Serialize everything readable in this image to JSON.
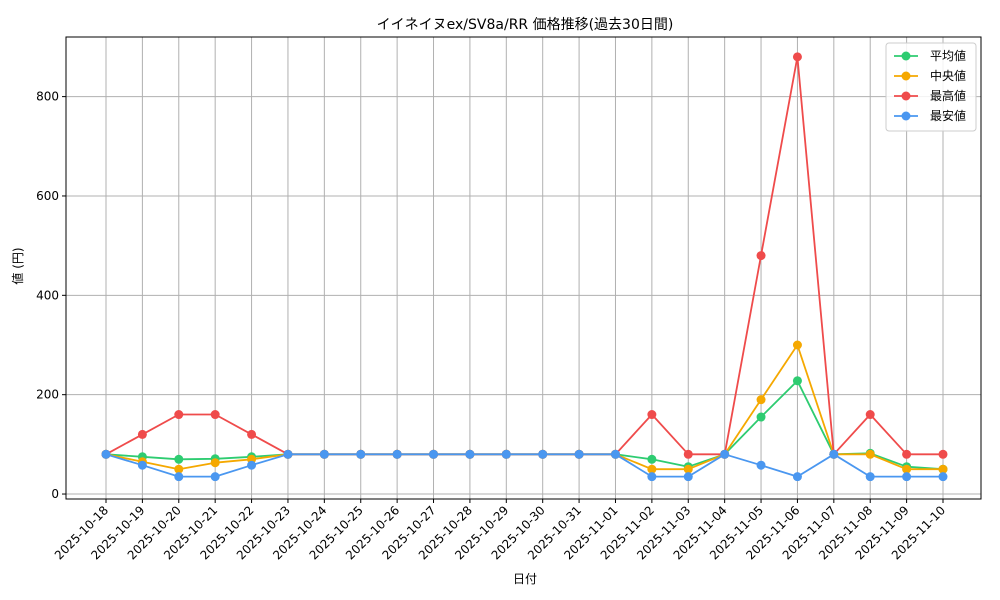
{
  "chart_data": {
    "type": "line",
    "title": "イイネイヌex/SV8a/RR 価格推移(過去30日間)",
    "xlabel": "日付",
    "ylabel": "値 (円)",
    "ylim": [
      -10,
      920
    ],
    "yticks": [
      0,
      200,
      400,
      600,
      800
    ],
    "grid": true,
    "legend_position": "top-right",
    "categories": [
      "2025-10-18",
      "2025-10-19",
      "2025-10-20",
      "2025-10-21",
      "2025-10-22",
      "2025-10-23",
      "2025-10-24",
      "2025-10-25",
      "2025-10-26",
      "2025-10-27",
      "2025-10-28",
      "2025-10-29",
      "2025-10-30",
      "2025-10-31",
      "2025-11-01",
      "2025-11-02",
      "2025-11-03",
      "2025-11-04",
      "2025-11-05",
      "2025-11-06",
      "2025-11-07",
      "2025-11-08",
      "2025-11-09",
      "2025-11-10"
    ],
    "series": [
      {
        "name": "平均値",
        "color": "#2ecc71",
        "values": [
          80,
          75,
          70,
          71,
          75,
          80,
          80,
          80,
          80,
          80,
          80,
          80,
          80,
          80,
          80,
          70,
          55,
          80,
          155,
          228,
          80,
          82,
          55,
          50
        ]
      },
      {
        "name": "中央値",
        "color": "#f5a800",
        "values": [
          80,
          65,
          50,
          63,
          70,
          80,
          80,
          80,
          80,
          80,
          80,
          80,
          80,
          80,
          80,
          50,
          50,
          80,
          190,
          300,
          80,
          80,
          50,
          50
        ]
      },
      {
        "name": "最高値",
        "color": "#ef4b4b",
        "values": [
          80,
          120,
          160,
          160,
          120,
          80,
          80,
          80,
          80,
          80,
          80,
          80,
          80,
          80,
          80,
          160,
          80,
          80,
          480,
          880,
          80,
          160,
          80,
          80
        ]
      },
      {
        "name": "最安値",
        "color": "#4a97f0",
        "values": [
          80,
          58,
          35,
          35,
          58,
          80,
          80,
          80,
          80,
          80,
          80,
          80,
          80,
          80,
          80,
          35,
          35,
          80,
          58,
          35,
          80,
          35,
          35,
          35
        ]
      }
    ]
  }
}
